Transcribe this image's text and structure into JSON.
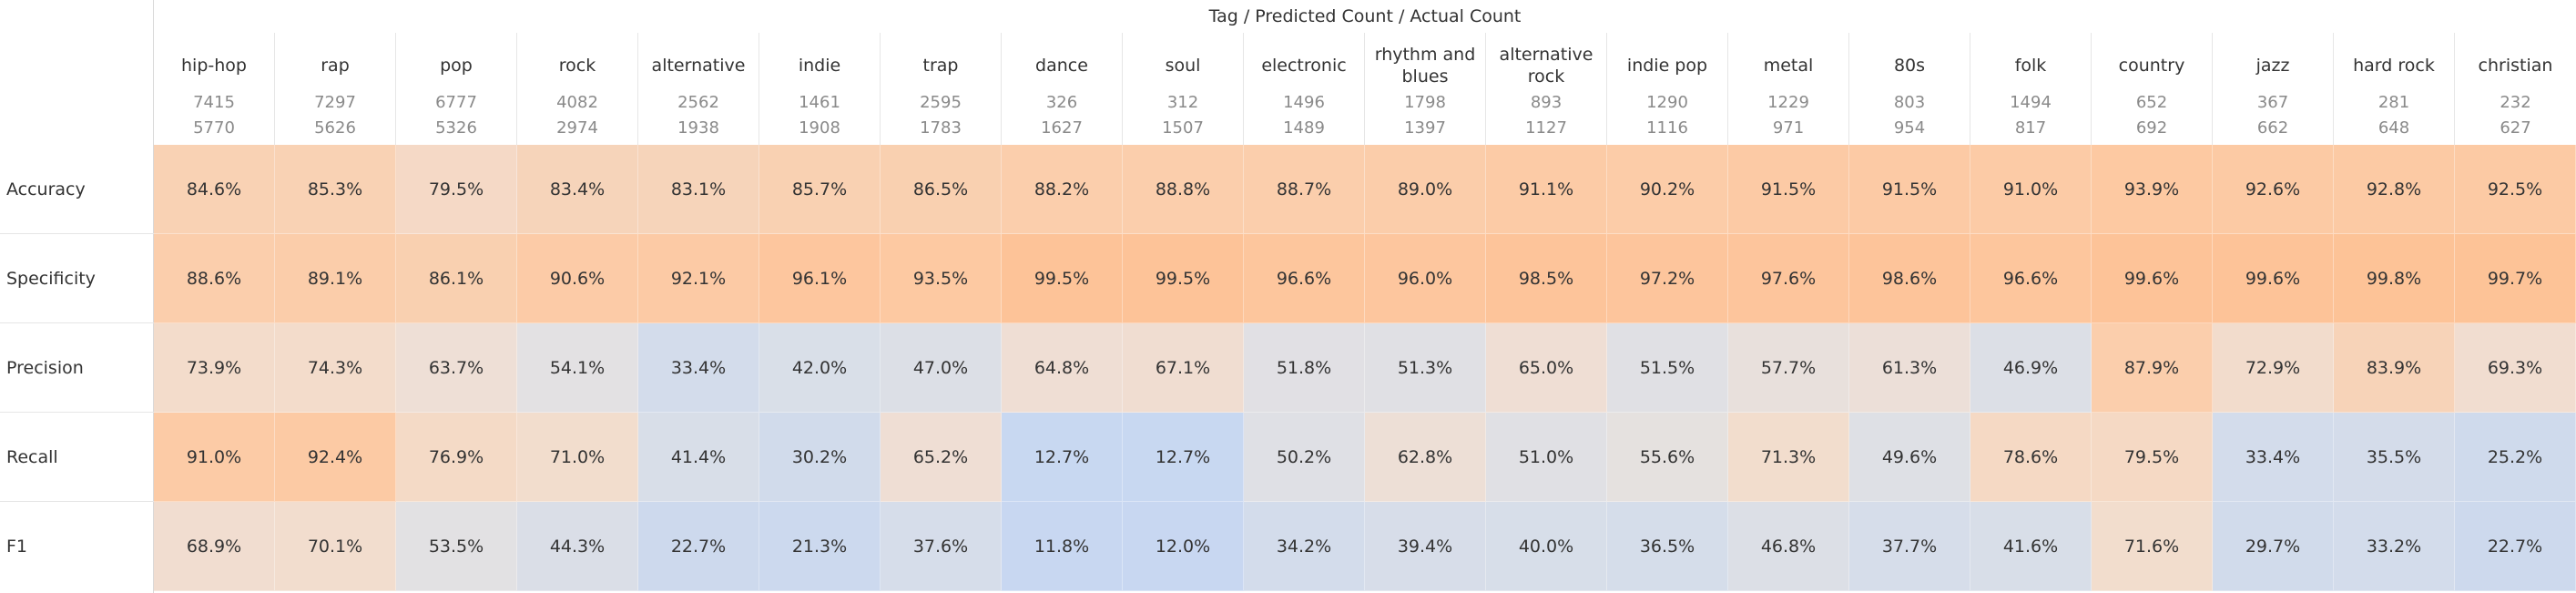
{
  "header": {
    "title": "Tag / Predicted Count / Actual Count"
  },
  "chart_data": {
    "type": "heatmap",
    "title": "Tag / Predicted Count / Actual Count",
    "columns": [
      {
        "tag": "hip-hop",
        "predicted": "7415",
        "actual": "5770"
      },
      {
        "tag": "rap",
        "predicted": "7297",
        "actual": "5626"
      },
      {
        "tag": "pop",
        "predicted": "6777",
        "actual": "5326"
      },
      {
        "tag": "rock",
        "predicted": "4082",
        "actual": "2974"
      },
      {
        "tag": "alternative",
        "predicted": "2562",
        "actual": "1938"
      },
      {
        "tag": "indie",
        "predicted": "1461",
        "actual": "1908"
      },
      {
        "tag": "trap",
        "predicted": "2595",
        "actual": "1783"
      },
      {
        "tag": "dance",
        "predicted": "326",
        "actual": "1627"
      },
      {
        "tag": "soul",
        "predicted": "312",
        "actual": "1507"
      },
      {
        "tag": "electronic",
        "predicted": "1496",
        "actual": "1489"
      },
      {
        "tag": "rhythm and blues",
        "predicted": "1798",
        "actual": "1397"
      },
      {
        "tag": "alternative rock",
        "predicted": "893",
        "actual": "1127"
      },
      {
        "tag": "indie pop",
        "predicted": "1290",
        "actual": "1116"
      },
      {
        "tag": "metal",
        "predicted": "1229",
        "actual": "971"
      },
      {
        "tag": "80s",
        "predicted": "803",
        "actual": "954"
      },
      {
        "tag": "folk",
        "predicted": "1494",
        "actual": "817"
      },
      {
        "tag": "country",
        "predicted": "652",
        "actual": "692"
      },
      {
        "tag": "jazz",
        "predicted": "367",
        "actual": "662"
      },
      {
        "tag": "hard rock",
        "predicted": "281",
        "actual": "648"
      },
      {
        "tag": "christian",
        "predicted": "232",
        "actual": "627"
      }
    ],
    "rows": [
      {
        "metric": "Accuracy",
        "values": [
          {
            "text": "84.6%",
            "v": 84.6,
            "color": "#f9d2b4"
          },
          {
            "text": "85.3%",
            "v": 85.3,
            "color": "#f9d2b4"
          },
          {
            "text": "79.5%",
            "v": 79.5,
            "color": "#f5d9c6"
          },
          {
            "text": "83.4%",
            "v": 83.4,
            "color": "#f6d4ba"
          },
          {
            "text": "83.1%",
            "v": 83.1,
            "color": "#f6d4ba"
          },
          {
            "text": "85.7%",
            "v": 85.7,
            "color": "#f9d1b2"
          },
          {
            "text": "86.5%",
            "v": 86.5,
            "color": "#f9d0b0"
          },
          {
            "text": "88.2%",
            "v": 88.2,
            "color": "#fbceac"
          },
          {
            "text": "88.8%",
            "v": 88.8,
            "color": "#fbceac"
          },
          {
            "text": "88.7%",
            "v": 88.7,
            "color": "#fbceac"
          },
          {
            "text": "89.0%",
            "v": 89.0,
            "color": "#fbcdaa"
          },
          {
            "text": "91.1%",
            "v": 91.1,
            "color": "#fccba6"
          },
          {
            "text": "90.2%",
            "v": 90.2,
            "color": "#fccca8"
          },
          {
            "text": "91.5%",
            "v": 91.5,
            "color": "#fccaa5"
          },
          {
            "text": "91.5%",
            "v": 91.5,
            "color": "#fccaa5"
          },
          {
            "text": "91.0%",
            "v": 91.0,
            "color": "#fccba6"
          },
          {
            "text": "93.9%",
            "v": 93.9,
            "color": "#fdc9a2"
          },
          {
            "text": "92.6%",
            "v": 92.6,
            "color": "#fccaa4"
          },
          {
            "text": "92.8%",
            "v": 92.8,
            "color": "#fccaa4"
          },
          {
            "text": "92.5%",
            "v": 92.5,
            "color": "#fccaa4"
          }
        ]
      },
      {
        "metric": "Specificity",
        "values": [
          {
            "text": "88.6%",
            "v": 88.6,
            "color": "#fbceac"
          },
          {
            "text": "89.1%",
            "v": 89.1,
            "color": "#fbcdaa"
          },
          {
            "text": "86.1%",
            "v": 86.1,
            "color": "#f9d0b0"
          },
          {
            "text": "90.6%",
            "v": 90.6,
            "color": "#fccba7"
          },
          {
            "text": "92.1%",
            "v": 92.1,
            "color": "#fccaa5"
          },
          {
            "text": "96.1%",
            "v": 96.1,
            "color": "#fdc69e"
          },
          {
            "text": "93.5%",
            "v": 93.5,
            "color": "#fdc9a2"
          },
          {
            "text": "99.5%",
            "v": 99.5,
            "color": "#fdc398"
          },
          {
            "text": "99.5%",
            "v": 99.5,
            "color": "#fdc398"
          },
          {
            "text": "96.6%",
            "v": 96.6,
            "color": "#fdc69d"
          },
          {
            "text": "96.0%",
            "v": 96.0,
            "color": "#fdc69e"
          },
          {
            "text": "98.5%",
            "v": 98.5,
            "color": "#fdc49a"
          },
          {
            "text": "97.2%",
            "v": 97.2,
            "color": "#fdc59c"
          },
          {
            "text": "97.6%",
            "v": 97.6,
            "color": "#fdc59c"
          },
          {
            "text": "98.6%",
            "v": 98.6,
            "color": "#fdc49a"
          },
          {
            "text": "96.6%",
            "v": 96.6,
            "color": "#fdc69d"
          },
          {
            "text": "99.6%",
            "v": 99.6,
            "color": "#fdc398"
          },
          {
            "text": "99.6%",
            "v": 99.6,
            "color": "#fdc398"
          },
          {
            "text": "99.8%",
            "v": 99.8,
            "color": "#fdc397"
          },
          {
            "text": "99.7%",
            "v": 99.7,
            "color": "#fdc397"
          }
        ]
      },
      {
        "metric": "Precision",
        "values": [
          {
            "text": "73.9%",
            "v": 73.9,
            "color": "#f3dccb"
          },
          {
            "text": "74.3%",
            "v": 74.3,
            "color": "#f3dccb"
          },
          {
            "text": "63.7%",
            "v": 63.7,
            "color": "#eedfd6"
          },
          {
            "text": "54.1%",
            "v": 54.1,
            "color": "#e3e1e3"
          },
          {
            "text": "33.4%",
            "v": 33.4,
            "color": "#d3dceb"
          },
          {
            "text": "42.0%",
            "v": 42.0,
            "color": "#d9dfe8"
          },
          {
            "text": "47.0%",
            "v": 47.0,
            "color": "#dcdfe6"
          },
          {
            "text": "64.8%",
            "v": 64.8,
            "color": "#efded4"
          },
          {
            "text": "67.1%",
            "v": 67.1,
            "color": "#f0ddd1"
          },
          {
            "text": "51.8%",
            "v": 51.8,
            "color": "#e1e0e4"
          },
          {
            "text": "51.3%",
            "v": 51.3,
            "color": "#e0e0e4"
          },
          {
            "text": "65.0%",
            "v": 65.0,
            "color": "#efded4"
          },
          {
            "text": "51.5%",
            "v": 51.5,
            "color": "#e0e0e4"
          },
          {
            "text": "57.7%",
            "v": 57.7,
            "color": "#e8e0dc"
          },
          {
            "text": "61.3%",
            "v": 61.3,
            "color": "#ecdfd8"
          },
          {
            "text": "46.9%",
            "v": 46.9,
            "color": "#dcdfe6"
          },
          {
            "text": "87.9%",
            "v": 87.9,
            "color": "#fbceac"
          },
          {
            "text": "72.9%",
            "v": 72.9,
            "color": "#f2dccc"
          },
          {
            "text": "83.9%",
            "v": 83.9,
            "color": "#f7d3b8"
          },
          {
            "text": "69.3%",
            "v": 69.3,
            "color": "#f1ddd0"
          }
        ]
      },
      {
        "metric": "Recall",
        "values": [
          {
            "text": "91.0%",
            "v": 91.0,
            "color": "#fccba6"
          },
          {
            "text": "92.4%",
            "v": 92.4,
            "color": "#fccaa4"
          },
          {
            "text": "76.9%",
            "v": 76.9,
            "color": "#f4dac6"
          },
          {
            "text": "71.0%",
            "v": 71.0,
            "color": "#f2ddcd"
          },
          {
            "text": "41.4%",
            "v": 41.4,
            "color": "#d8dee8"
          },
          {
            "text": "30.2%",
            "v": 30.2,
            "color": "#d1dbeb"
          },
          {
            "text": "65.2%",
            "v": 65.2,
            "color": "#efded4"
          },
          {
            "text": "12.7%",
            "v": 12.7,
            "color": "#c8d8f1"
          },
          {
            "text": "12.7%",
            "v": 12.7,
            "color": "#c8d8f1"
          },
          {
            "text": "50.2%",
            "v": 50.2,
            "color": "#dfe0e5"
          },
          {
            "text": "62.8%",
            "v": 62.8,
            "color": "#eddfd6"
          },
          {
            "text": "51.0%",
            "v": 51.0,
            "color": "#e0e0e4"
          },
          {
            "text": "55.6%",
            "v": 55.6,
            "color": "#e5e1df"
          },
          {
            "text": "71.3%",
            "v": 71.3,
            "color": "#f2ddcd"
          },
          {
            "text": "49.6%",
            "v": 49.6,
            "color": "#dee0e5"
          },
          {
            "text": "78.6%",
            "v": 78.6,
            "color": "#f5d9c4"
          },
          {
            "text": "79.5%",
            "v": 79.5,
            "color": "#f5d9c4"
          },
          {
            "text": "33.4%",
            "v": 33.4,
            "color": "#d3dceb"
          },
          {
            "text": "35.5%",
            "v": 35.5,
            "color": "#d4dcea"
          },
          {
            "text": "25.2%",
            "v": 25.2,
            "color": "#cfdaec"
          }
        ]
      },
      {
        "metric": "F1",
        "values": [
          {
            "text": "68.9%",
            "v": 68.9,
            "color": "#f1ddd0"
          },
          {
            "text": "70.1%",
            "v": 70.1,
            "color": "#f2ddce"
          },
          {
            "text": "53.5%",
            "v": 53.5,
            "color": "#e2e1e3"
          },
          {
            "text": "44.3%",
            "v": 44.3,
            "color": "#dadee7"
          },
          {
            "text": "22.7%",
            "v": 22.7,
            "color": "#cdd9ed"
          },
          {
            "text": "21.3%",
            "v": 21.3,
            "color": "#ccd9ee"
          },
          {
            "text": "37.6%",
            "v": 37.6,
            "color": "#d6ddea"
          },
          {
            "text": "11.8%",
            "v": 11.8,
            "color": "#c8d7f1"
          },
          {
            "text": "12.0%",
            "v": 12.0,
            "color": "#c8d7f1"
          },
          {
            "text": "34.2%",
            "v": 34.2,
            "color": "#d3dceb"
          },
          {
            "text": "39.4%",
            "v": 39.4,
            "color": "#d7dde9"
          },
          {
            "text": "40.0%",
            "v": 40.0,
            "color": "#d7dee9"
          },
          {
            "text": "36.5%",
            "v": 36.5,
            "color": "#d5ddea"
          },
          {
            "text": "46.8%",
            "v": 46.8,
            "color": "#dcdfe6"
          },
          {
            "text": "37.7%",
            "v": 37.7,
            "color": "#d6ddea"
          },
          {
            "text": "41.6%",
            "v": 41.6,
            "color": "#d8dee8"
          },
          {
            "text": "71.6%",
            "v": 71.6,
            "color": "#f2ddcd"
          },
          {
            "text": "29.7%",
            "v": 29.7,
            "color": "#d1dbeb"
          },
          {
            "text": "33.2%",
            "v": 33.2,
            "color": "#d3dceb"
          },
          {
            "text": "22.7%",
            "v": 22.7,
            "color": "#cdd9ed"
          }
        ]
      }
    ]
  }
}
